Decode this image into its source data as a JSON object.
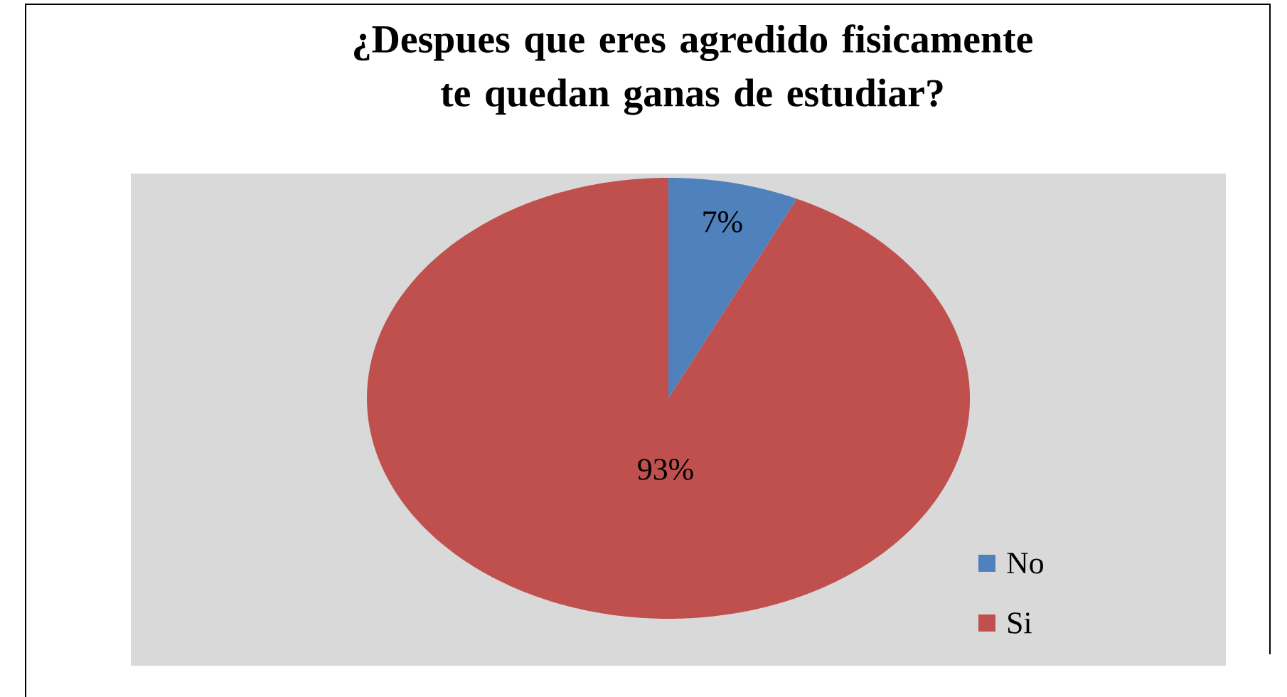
{
  "chart_data": {
    "type": "pie",
    "title": "¿Despues que eres agredido fisicamente te quedan ganas de estudiar?",
    "categories": [
      "No",
      "Si"
    ],
    "values": [
      7,
      93
    ],
    "colors": [
      "#4f81bd",
      "#c0504d"
    ],
    "value_labels": [
      "7%",
      "93%"
    ],
    "legend": "right"
  }
}
